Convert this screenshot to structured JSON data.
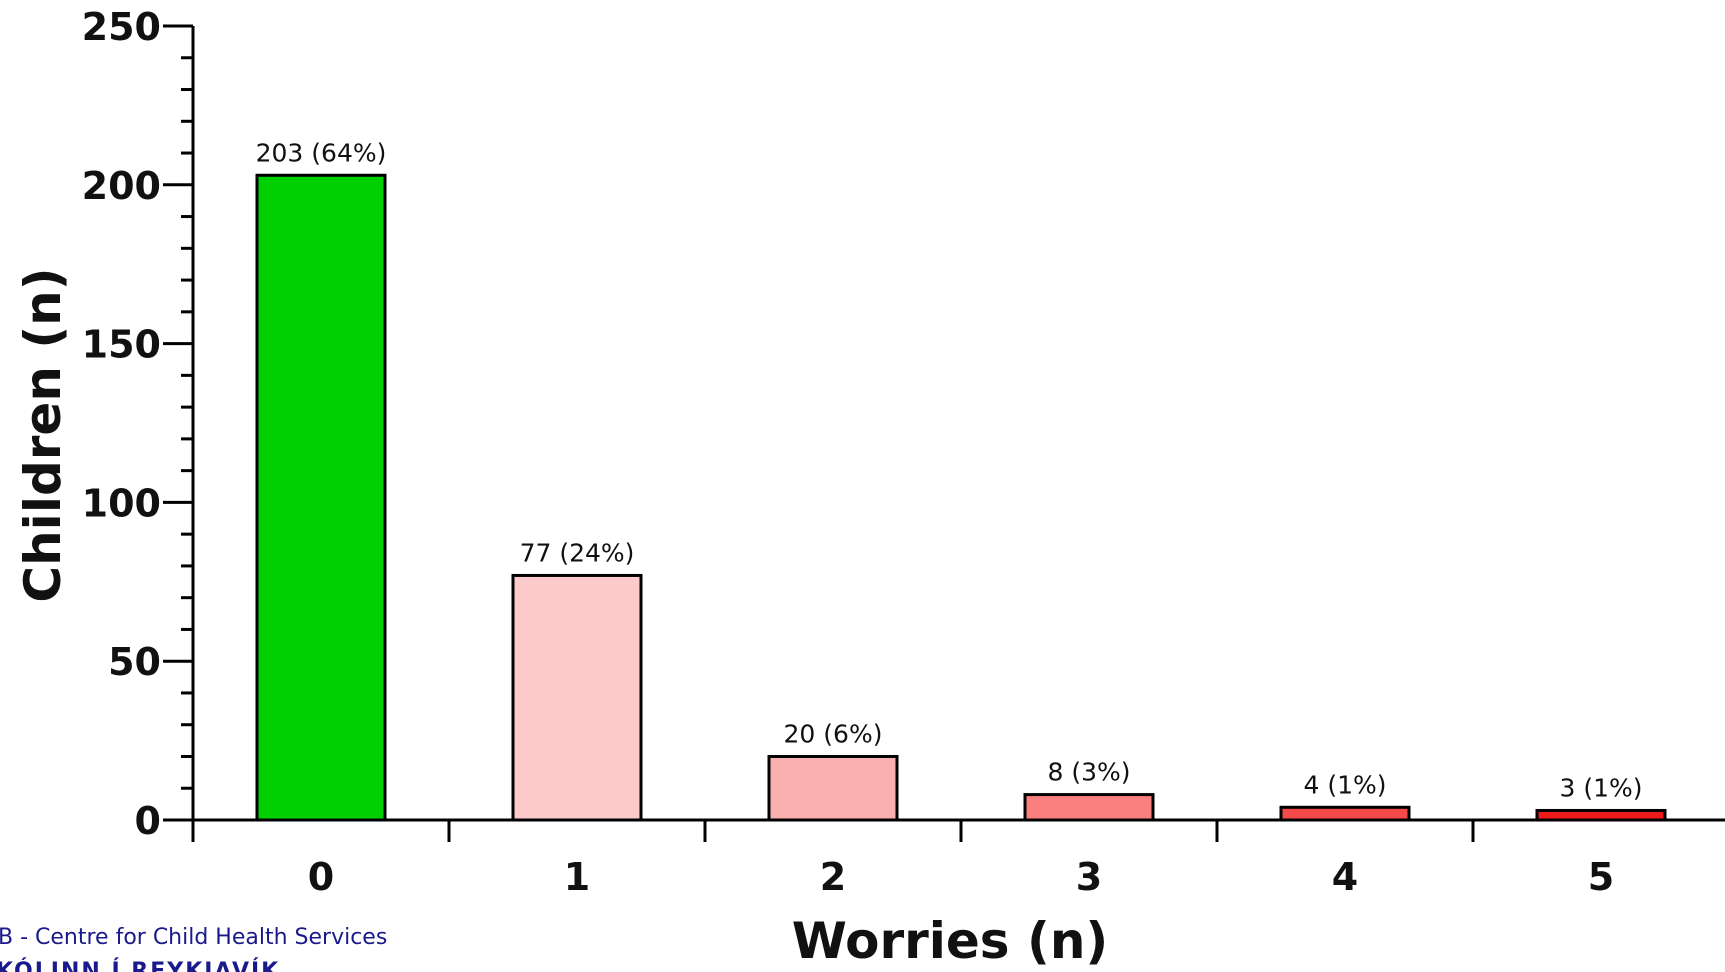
{
  "chart_data": {
    "type": "bar",
    "categories": [
      "0",
      "1",
      "2",
      "3",
      "4",
      "5"
    ],
    "values": [
      203,
      77,
      20,
      8,
      4,
      3
    ],
    "data_labels": [
      "203 (64%)",
      "77 (24%)",
      "20 (6%)",
      "8 (3%)",
      "4 (1%)",
      "3 (1%)"
    ],
    "bar_colors": [
      "#00d000",
      "#fccaca",
      "#fbb0b0",
      "#fb7f7f",
      "#f44a4a",
      "#ee1b1b"
    ],
    "xlabel": "Worries (n)",
    "ylabel": "Children (n)",
    "ylim": [
      0,
      250
    ],
    "yticks": [
      0,
      50,
      100,
      150,
      200,
      250
    ],
    "grid": false,
    "legend": "none"
  },
  "footer": {
    "line1": "B - Centre for Child Health Services",
    "line2": "KÓLINN Í REYKJAVÍK"
  }
}
